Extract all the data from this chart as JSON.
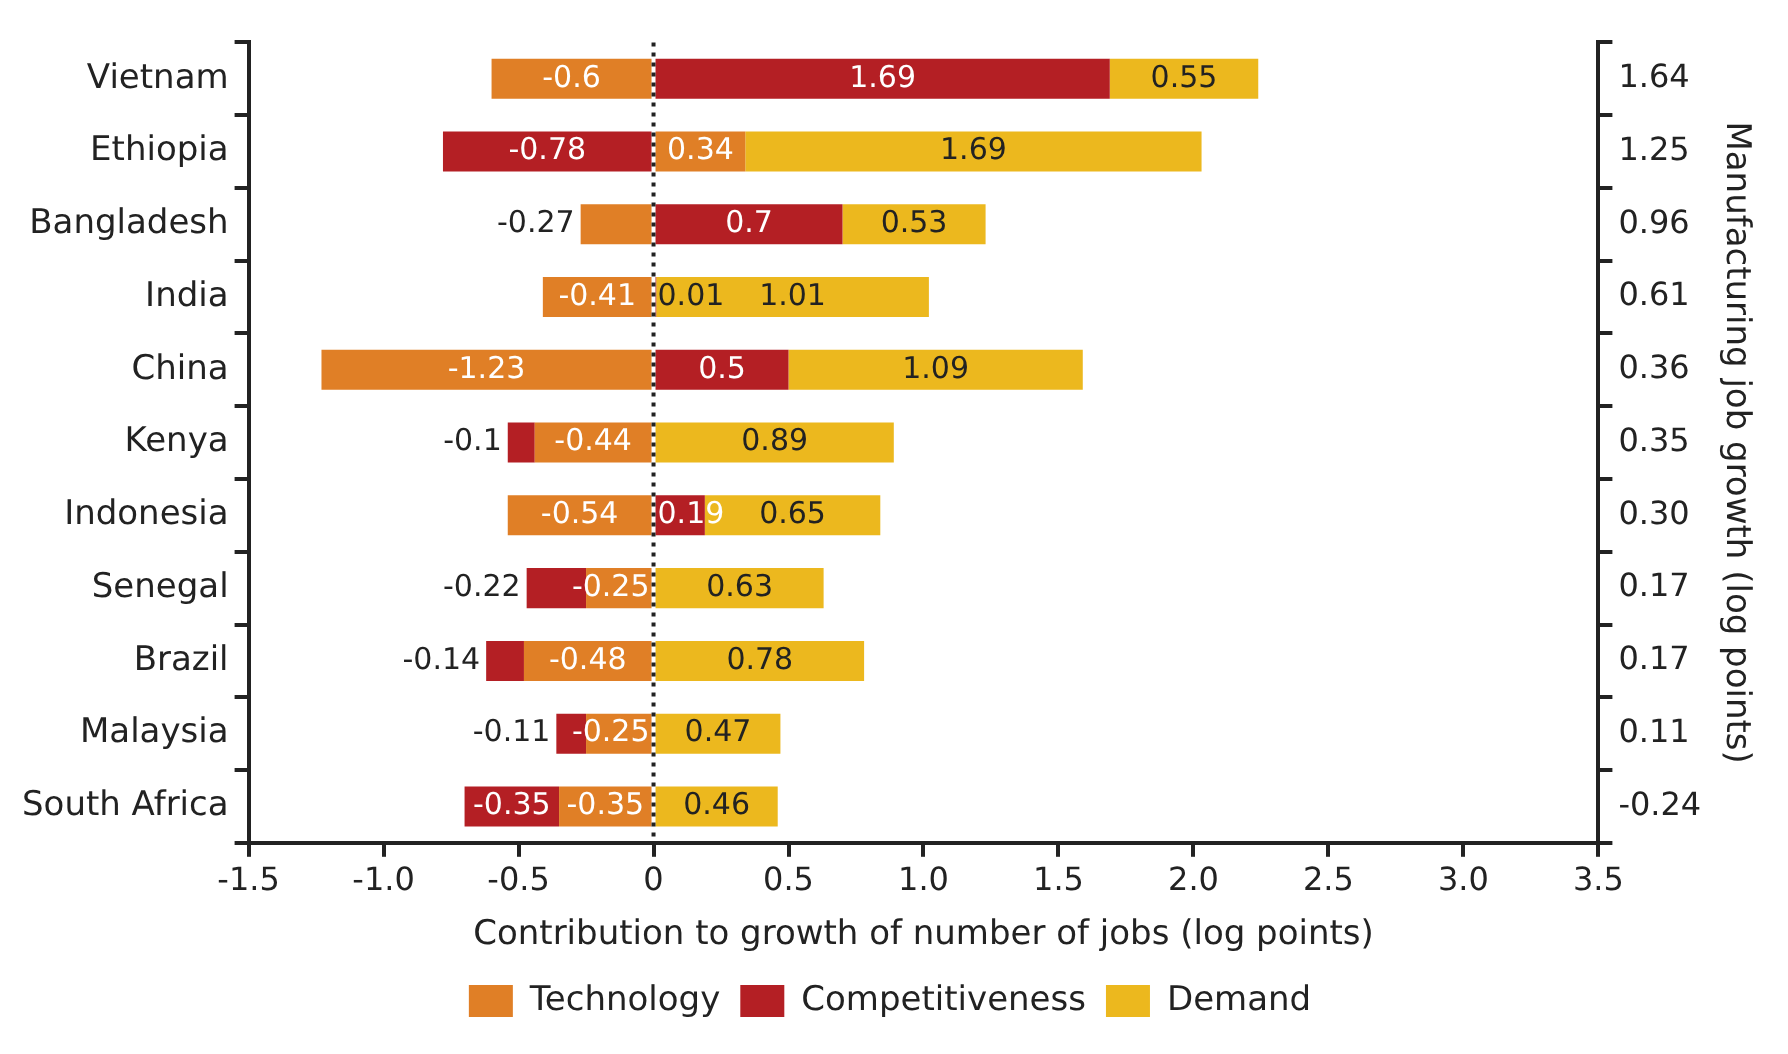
{
  "chart_data": {
    "type": "bar",
    "orientation": "horizontal",
    "stacked": true,
    "categories": [
      "Vietnam",
      "Ethiopia",
      "Bangladesh",
      "India",
      "China",
      "Kenya",
      "Indonesia",
      "Senegal",
      "Brazil",
      "Malaysia",
      "South Africa"
    ],
    "y2_categories": [
      "1.64",
      "1.25",
      "0.96",
      "0.61",
      "0.36",
      "0.35",
      "0.30",
      "0.17",
      "0.17",
      "0.11",
      "-0.24"
    ],
    "series": [
      {
        "name": "Technology",
        "color": "#e07f26",
        "values": [
          -0.6,
          0.34,
          -0.27,
          -0.41,
          -1.23,
          -0.44,
          -0.54,
          -0.25,
          -0.48,
          -0.25,
          -0.35
        ]
      },
      {
        "name": "Competitiveness",
        "color": "#b41f24",
        "values": [
          1.69,
          -0.78,
          0.7,
          0.01,
          0.5,
          -0.1,
          0.19,
          -0.22,
          -0.14,
          -0.11,
          -0.35
        ]
      },
      {
        "name": "Demand",
        "color": "#ecb81e",
        "values": [
          0.55,
          1.69,
          0.53,
          1.01,
          1.09,
          0.89,
          0.65,
          0.63,
          0.78,
          0.47,
          0.46
        ]
      }
    ],
    "xlim": [
      -1.5,
      3.5
    ],
    "xticks": [
      {
        "value": -1.5,
        "label": "-1.5"
      },
      {
        "value": -1,
        "label": "-1.0"
      },
      {
        "value": -0.5,
        "label": "-0.5"
      },
      0,
      0.5,
      {
        "value": 1,
        "label": "1.0"
      },
      1.5,
      {
        "value": 2,
        "label": "2.0"
      },
      2.5,
      {
        "value": 3,
        "label": "3.0"
      },
      3.5
    ],
    "xlabel": "Contribution to growth of number of jobs (log points)",
    "y2label": "Manufacturing job growth (log points)",
    "ref_lines": [
      {
        "axis": "x",
        "value": 0,
        "color": "#222222",
        "line_style": "dotted"
      }
    ],
    "data_labels": true,
    "legend": "bottom",
    "grid": false
  }
}
